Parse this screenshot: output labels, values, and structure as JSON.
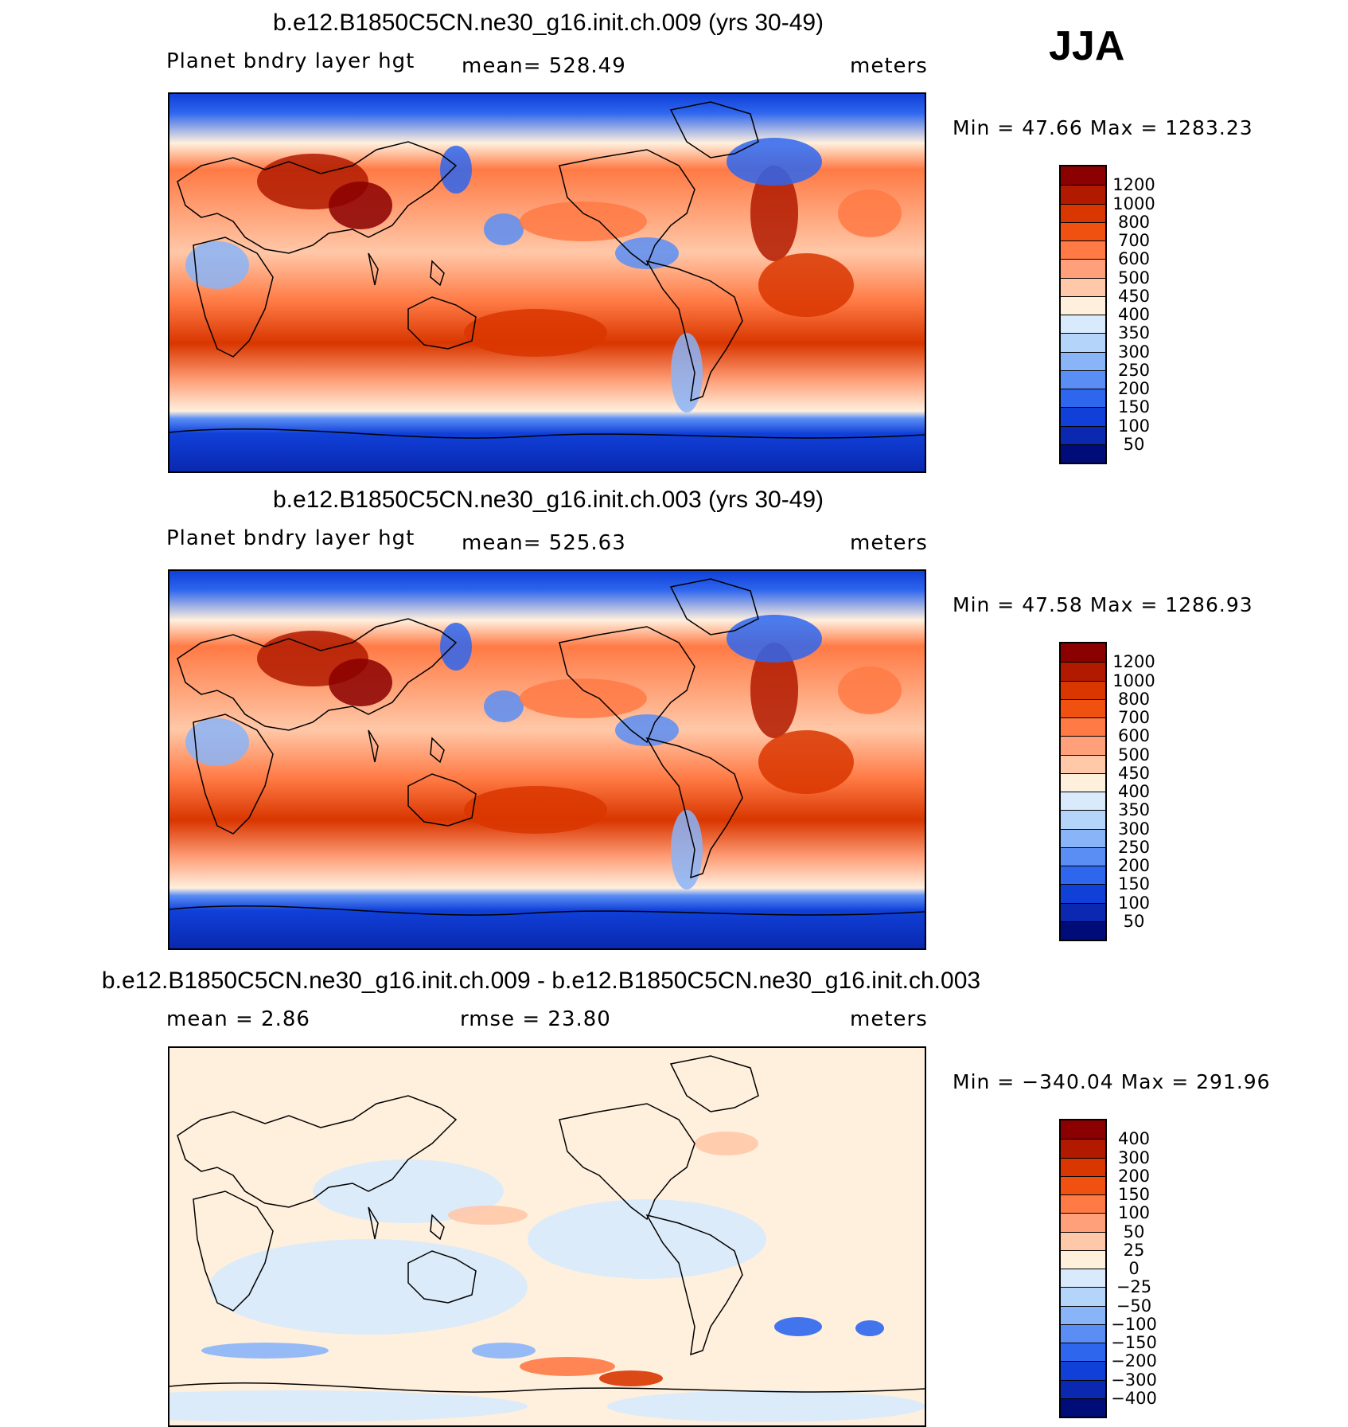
{
  "season": "JJA",
  "chart_data": [
    {
      "type": "heatmap",
      "title": "b.e12.B1850C5CN.ne30_g16.init.ch.009 (yrs 30-49)",
      "variable": "Planet bndry layer hgt",
      "stat_text": "mean=  528.49",
      "units": "meters",
      "minmax_text": "Min =   47.66 Max =  1283.23",
      "colorbar": {
        "labels": [
          "1200",
          "1000",
          "800",
          "700",
          "600",
          "500",
          "450",
          "400",
          "350",
          "300",
          "250",
          "200",
          "150",
          "100",
          "50"
        ],
        "colors": [
          "#8b0000",
          "#b21a00",
          "#d93600",
          "#f05010",
          "#ff7a45",
          "#ffa07a",
          "#ffc8a8",
          "#fff0de",
          "#d8eafc",
          "#b4d4fa",
          "#8ab4f8",
          "#5a8ef5",
          "#2e66ee",
          "#1040d8",
          "#0a28b0",
          "#000c78"
        ]
      }
    },
    {
      "type": "heatmap",
      "title": "b.e12.B1850C5CN.ne30_g16.init.ch.003 (yrs 30-49)",
      "variable": "Planet bndry layer hgt",
      "stat_text": "mean=  525.63",
      "units": "meters",
      "minmax_text": "Min =   47.58 Max =  1286.93",
      "colorbar": {
        "labels": [
          "1200",
          "1000",
          "800",
          "700",
          "600",
          "500",
          "450",
          "400",
          "350",
          "300",
          "250",
          "200",
          "150",
          "100",
          "50"
        ],
        "colors": [
          "#8b0000",
          "#b21a00",
          "#d93600",
          "#f05010",
          "#ff7a45",
          "#ffa07a",
          "#ffc8a8",
          "#fff0de",
          "#d8eafc",
          "#b4d4fa",
          "#8ab4f8",
          "#5a8ef5",
          "#2e66ee",
          "#1040d8",
          "#0a28b0",
          "#000c78"
        ]
      }
    },
    {
      "type": "heatmap",
      "title": "b.e12.B1850C5CN.ne30_g16.init.ch.009 - b.e12.B1850C5CN.ne30_g16.init.ch.003",
      "variable": "mean =     2.86",
      "stat_text": "rmse =    23.80",
      "units": "meters",
      "minmax_text": "Min = −340.04 Max =  291.96",
      "colorbar": {
        "labels": [
          "400",
          "300",
          "200",
          "150",
          "100",
          "50",
          "25",
          "0",
          "−25",
          "−50",
          "−100",
          "−150",
          "−200",
          "−300",
          "−400"
        ],
        "colors": [
          "#8b0000",
          "#b21a00",
          "#d93600",
          "#f05010",
          "#ff7a45",
          "#ffa07a",
          "#ffc8a8",
          "#fff0de",
          "#d8eafc",
          "#b4d4fa",
          "#8ab4f8",
          "#5a8ef5",
          "#2e66ee",
          "#1040d8",
          "#0a28b0",
          "#000c78"
        ]
      }
    }
  ]
}
